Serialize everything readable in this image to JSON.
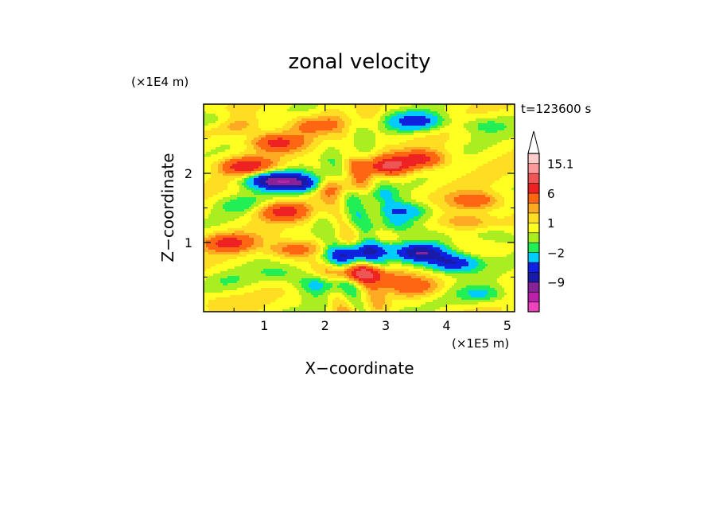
{
  "chart_data": {
    "type": "heatmap",
    "title": "zonal velocity",
    "xlabel": "X−coordinate",
    "ylabel": "Z−coordinate",
    "x_unit": "(×1E5 m)",
    "y_unit": "(×1E4 m)",
    "time_label": "t=123600 s",
    "x_ticks": [
      1,
      2,
      3,
      4,
      5
    ],
    "y_ticks": [
      1,
      2
    ],
    "xlim": [
      0,
      5.12
    ],
    "ylim": [
      0,
      3.0
    ],
    "colorbar": {
      "labels": [
        {
          "text": "15.1",
          "value": 15.1
        },
        {
          "text": "6",
          "value": 6
        },
        {
          "text": "1",
          "value": 1
        },
        {
          "text": "−2",
          "value": -2
        },
        {
          "text": "−9",
          "value": -9
        }
      ],
      "colors": [
        "#ee44bb",
        "#bb22aa",
        "#882299",
        "#1a1aa8",
        "#1020e0",
        "#00ccff",
        "#22ee55",
        "#aaee22",
        "#ffff22",
        "#ffdd22",
        "#ffaa22",
        "#ff6611",
        "#ee2222",
        "#ee5555",
        "#ff9999",
        "#ffcccc"
      ],
      "extend_top_color": "#ffffff"
    },
    "features": [
      {
        "x": 0.2,
        "z": 2.75,
        "u": -3
      },
      {
        "x": 0.5,
        "z": 2.7,
        "u": 3
      },
      {
        "x": 1.8,
        "z": 2.7,
        "u": 3
      },
      {
        "x": 3.5,
        "z": 2.75,
        "u": -6
      },
      {
        "x": 4.6,
        "z": 2.7,
        "u": -2
      },
      {
        "x": 1.2,
        "z": 2.45,
        "u": 5
      },
      {
        "x": 0.7,
        "z": 2.1,
        "u": 6
      },
      {
        "x": 1.1,
        "z": 1.9,
        "u": -8
      },
      {
        "x": 1.6,
        "z": 1.85,
        "u": -7
      },
      {
        "x": 3.0,
        "z": 2.1,
        "u": 6
      },
      {
        "x": 3.6,
        "z": 2.2,
        "u": 5
      },
      {
        "x": 2.1,
        "z": 1.8,
        "u": 3
      },
      {
        "x": 0.6,
        "z": 1.55,
        "u": -2
      },
      {
        "x": 1.3,
        "z": 1.45,
        "u": 5
      },
      {
        "x": 3.3,
        "z": 1.45,
        "u": -5
      },
      {
        "x": 3.1,
        "z": 1.25,
        "u": -3
      },
      {
        "x": 4.5,
        "z": 1.6,
        "u": 4
      },
      {
        "x": 4.8,
        "z": 1.1,
        "u": -2
      },
      {
        "x": 4.3,
        "z": 1.3,
        "u": 3
      },
      {
        "x": 3.6,
        "z": 0.85,
        "u": -8
      },
      {
        "x": 4.1,
        "z": 0.7,
        "u": -7
      },
      {
        "x": 0.4,
        "z": 1.0,
        "u": 5
      },
      {
        "x": 1.5,
        "z": 0.9,
        "u": 4
      },
      {
        "x": 1.3,
        "z": 0.55,
        "u": -2
      },
      {
        "x": 0.4,
        "z": 0.45,
        "u": -1
      },
      {
        "x": 1.9,
        "z": 0.4,
        "u": -3
      },
      {
        "x": 2.6,
        "z": 0.55,
        "u": 7
      },
      {
        "x": 2.35,
        "z": 0.8,
        "u": -6
      },
      {
        "x": 2.7,
        "z": 0.9,
        "u": -5
      },
      {
        "x": 3.0,
        "z": 0.45,
        "u": 2
      },
      {
        "x": 3.5,
        "z": 0.35,
        "u": 3
      },
      {
        "x": 4.6,
        "z": 0.25,
        "u": -3
      },
      {
        "x": 0.2,
        "z": 0.15,
        "u": 1
      },
      {
        "x": 2.8,
        "z": 1.7,
        "u": -2
      }
    ]
  }
}
